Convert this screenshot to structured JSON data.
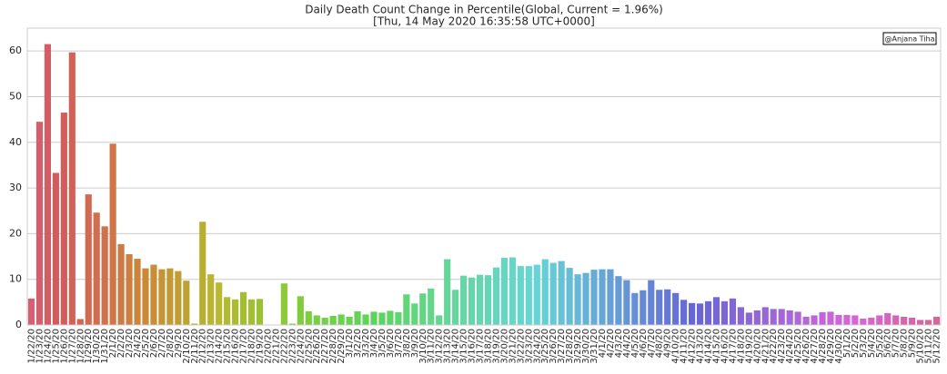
{
  "chart_data": {
    "type": "bar",
    "title": "Daily Death Count Change in Percentile(Global, Current = 1.96%)",
    "subtitle": "[Thu, 14 May 2020 16:35:58 UTC+0000]",
    "annotation": "@Anjana Tiha",
    "palette": "husl",
    "grid": true,
    "ylim": [
      0,
      65
    ],
    "yticks": [
      0,
      10,
      20,
      30,
      40,
      50,
      60
    ],
    "categories": [
      "1/22/20",
      "1/23/20",
      "1/24/20",
      "1/25/20",
      "1/26/20",
      "1/27/20",
      "1/28/20",
      "1/29/20",
      "1/30/20",
      "1/31/20",
      "2/1/20",
      "2/2/20",
      "2/3/20",
      "2/4/20",
      "2/5/20",
      "2/6/20",
      "2/7/20",
      "2/8/20",
      "2/9/20",
      "2/10/20",
      "2/11/20",
      "2/12/20",
      "2/13/20",
      "2/14/20",
      "2/15/20",
      "2/16/20",
      "2/17/20",
      "2/18/20",
      "2/19/20",
      "2/20/20",
      "2/21/20",
      "2/22/20",
      "2/23/20",
      "2/24/20",
      "2/25/20",
      "2/26/20",
      "2/27/20",
      "2/28/20",
      "2/29/20",
      "3/1/20",
      "3/2/20",
      "3/3/20",
      "3/4/20",
      "3/5/20",
      "3/6/20",
      "3/7/20",
      "3/8/20",
      "3/9/20",
      "3/10/20",
      "3/11/20",
      "3/12/20",
      "3/13/20",
      "3/14/20",
      "3/15/20",
      "3/16/20",
      "3/17/20",
      "3/18/20",
      "3/19/20",
      "3/20/20",
      "3/21/20",
      "3/22/20",
      "3/23/20",
      "3/24/20",
      "3/25/20",
      "3/26/20",
      "3/27/20",
      "3/28/20",
      "3/29/20",
      "3/30/20",
      "3/31/20",
      "4/1/20",
      "4/2/20",
      "4/3/20",
      "4/4/20",
      "4/5/20",
      "4/6/20",
      "4/7/20",
      "4/8/20",
      "4/9/20",
      "4/10/20",
      "4/11/20",
      "4/12/20",
      "4/13/20",
      "4/14/20",
      "4/15/20",
      "4/16/20",
      "4/17/20",
      "4/18/20",
      "4/19/20",
      "4/20/20",
      "4/21/20",
      "4/22/20",
      "4/23/20",
      "4/24/20",
      "4/25/20",
      "4/26/20",
      "4/27/20",
      "4/28/20",
      "4/29/20",
      "4/30/20",
      "5/1/20",
      "5/2/20",
      "5/3/20",
      "5/4/20",
      "5/5/20",
      "5/6/20",
      "5/7/20",
      "5/8/20",
      "5/9/20",
      "5/10/20",
      "5/11/20",
      "5/12/20"
    ],
    "values": [
      5.8,
      44.5,
      61.5,
      33.3,
      46.5,
      59.7,
      1.3,
      28.6,
      24.6,
      21.6,
      39.7,
      17.7,
      15.5,
      14.5,
      12.4,
      13.2,
      12.2,
      12.4,
      11.8,
      9.7,
      0.3,
      22.6,
      11.1,
      9.3,
      6.1,
      5.6,
      7.2,
      5.6,
      5.7,
      0.1,
      0,
      9.1,
      0.3,
      6.3,
      3.0,
      2.1,
      1.6,
      2.0,
      2.3,
      1.8,
      3.0,
      2.3,
      2.9,
      2.7,
      3.1,
      2.8,
      6.7,
      4.7,
      6.9,
      8.0,
      2.1,
      14.4,
      7.7,
      10.8,
      10.4,
      11.0,
      10.9,
      12.6,
      14.7,
      14.8,
      12.9,
      12.9,
      13.2,
      14.4,
      13.6,
      14.0,
      12.5,
      11.1,
      11.4,
      12.1,
      12.2,
      12.2,
      10.7,
      9.8,
      7.0,
      7.6,
      9.8,
      7.7,
      7.8,
      7.0,
      5.5,
      4.8,
      4.7,
      5.2,
      6.1,
      5.2,
      5.8,
      3.9,
      2.7,
      3.2,
      3.9,
      3.5,
      3.5,
      3.2,
      2.9,
      1.8,
      2.1,
      2.8,
      2.9,
      2.2,
      2.2,
      2.1,
      1.4,
      1.6,
      2.1,
      2.6,
      2.1,
      1.8,
      1.6,
      1.1,
      1.1,
      1.8
    ]
  }
}
